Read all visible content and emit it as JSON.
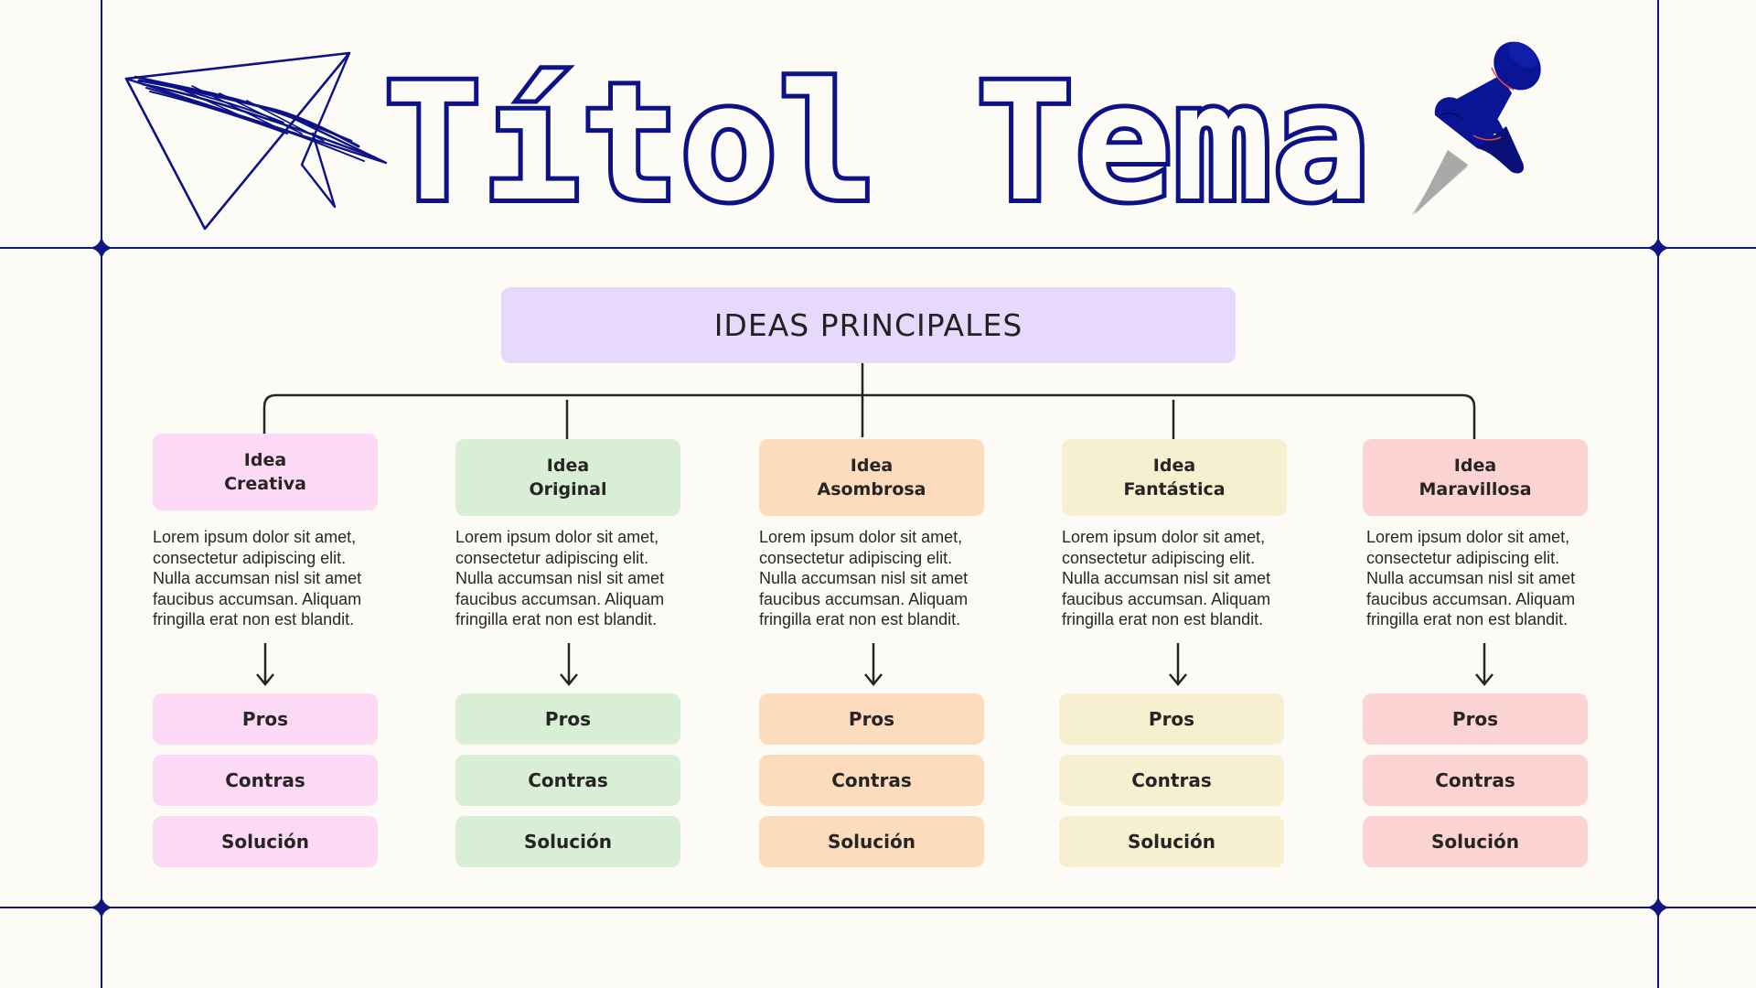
{
  "title": "Títol Tema",
  "main_topic": "IDEAS PRINCIPALES",
  "colors": {
    "frame": "#10177f",
    "title_outline": "#0d1287",
    "main_box": "#e6d9fc"
  },
  "icons": {
    "plane": "paper-plane-icon",
    "pin": "push-pin-icon"
  },
  "columns": [
    {
      "idea_line1": "Idea",
      "idea_line2": "Creativa",
      "color": "#fcdaf5",
      "desc": [
        "Lorem ipsum dolor sit amet,",
        "consectetur adipiscing elit.",
        "Nulla accumsan nisl sit amet",
        "faucibus accumsan. Aliquam",
        "fringilla erat non est blandit."
      ],
      "pros": "Pros",
      "contras": "Contras",
      "solucion": "Solución"
    },
    {
      "idea_line1": "Idea",
      "idea_line2": "Original",
      "color": "#d8eed5",
      "desc": [
        "Lorem ipsum dolor sit amet,",
        "consectetur adipiscing elit.",
        "Nulla accumsan nisl sit amet",
        "faucibus accumsan. Aliquam",
        "fringilla erat non est blandit."
      ],
      "pros": "Pros",
      "contras": "Contras",
      "solucion": "Solución"
    },
    {
      "idea_line1": "Idea",
      "idea_line2": "Asombrosa",
      "color": "#fddbbd",
      "desc": [
        "Lorem ipsum dolor sit amet,",
        "consectetur adipiscing elit.",
        "Nulla accumsan nisl sit amet",
        "faucibus accumsan. Aliquam",
        "fringilla erat non est blandit."
      ],
      "pros": "Pros",
      "contras": "Contras",
      "solucion": "Solución"
    },
    {
      "idea_line1": "Idea",
      "idea_line2": "Fantástica",
      "color": "#f6f0d1",
      "desc": [
        "Lorem ipsum dolor sit amet,",
        "consectetur adipiscing elit.",
        "Nulla accumsan nisl sit amet",
        "faucibus accumsan. Aliquam",
        "fringilla erat non est blandit."
      ],
      "pros": "Pros",
      "contras": "Contras",
      "solucion": "Solución"
    },
    {
      "idea_line1": "Idea",
      "idea_line2": "Maravillosa",
      "color": "#fcd3d3",
      "desc": [
        "Lorem ipsum dolor sit amet,",
        "consectetur adipiscing elit.",
        "Nulla accumsan nisl sit amet",
        "faucibus accumsan. Aliquam",
        "fringilla erat non est blandit."
      ],
      "pros": "Pros",
      "contras": "Contras",
      "solucion": "Solución"
    }
  ]
}
